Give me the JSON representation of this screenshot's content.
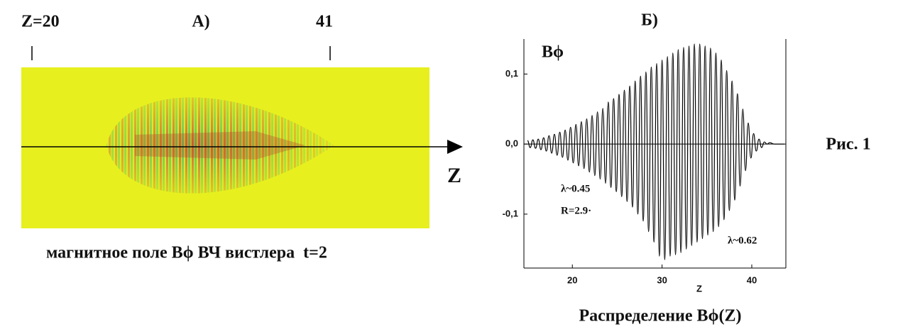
{
  "chart_data": [
    {
      "type": "heatmap",
      "title": "А)",
      "markers": [
        {
          "value": 20,
          "label": "Z=20"
        },
        41
      ],
      "xlabel": "Z",
      "caption": "магнитное поле Bϕ ВЧ вистлера  t=2"
    },
    {
      "type": "line",
      "title": "Б)",
      "subtitle": "Распределение Bϕ(Z)",
      "xlabel": "Z",
      "ylabel": "Bϕ",
      "xlim": [
        14.6,
        43.8
      ],
      "ylim": [
        -0.177,
        0.15
      ],
      "xticks": [
        20,
        30,
        40
      ],
      "yticks": [
        {
          "value": 0.1,
          "label": "0,1"
        },
        {
          "value": 0,
          "label": "0,0"
        },
        {
          "value": -0.1,
          "label": "-0,1"
        }
      ],
      "color": "#000000",
      "annotations": [
        "λ~0.45",
        "R=2.9·",
        "λ~0.62"
      ],
      "x": [
        15.0,
        15.3,
        15.6,
        15.9,
        16.2,
        16.5,
        16.8,
        17.1,
        17.4,
        17.7,
        18.0,
        18.3,
        18.6,
        18.9,
        19.2,
        19.5,
        19.8,
        20.1,
        20.4,
        20.7,
        21.0,
        21.3,
        21.6,
        21.9,
        22.2,
        22.5,
        22.8,
        23.1,
        23.4,
        23.7,
        24.0,
        24.3,
        24.6,
        24.9,
        25.2,
        25.5,
        25.8,
        26.1,
        26.4,
        26.7,
        27.0,
        27.3,
        27.6,
        27.9,
        28.2,
        28.5,
        28.8,
        29.1,
        29.4,
        29.7,
        30.0,
        30.3,
        30.6,
        30.9,
        31.2,
        31.5,
        31.8,
        32.1,
        32.4,
        32.7,
        33.0,
        33.3,
        33.6,
        33.9,
        34.2,
        34.5,
        34.8,
        35.1,
        35.4,
        35.7,
        36.0,
        36.3,
        36.6,
        36.9,
        37.2,
        37.5,
        37.8,
        38.1,
        38.4,
        38.7,
        39.0,
        39.3,
        39.6,
        39.9,
        40.2,
        40.5,
        40.8,
        41.1,
        41.4,
        41.7,
        42.0,
        42.5,
        43.0,
        43.6
      ],
      "values": [
        0.005,
        -0.005,
        0.006,
        -0.006,
        0.007,
        -0.008,
        0.009,
        -0.01,
        0.012,
        -0.013,
        0.014,
        -0.016,
        0.017,
        -0.019,
        0.02,
        -0.023,
        0.024,
        -0.027,
        0.028,
        -0.031,
        0.032,
        -0.035,
        0.036,
        -0.04,
        0.041,
        -0.045,
        0.046,
        -0.05,
        0.051,
        -0.056,
        0.06,
        -0.062,
        0.065,
        -0.068,
        0.071,
        -0.075,
        0.077,
        -0.082,
        0.083,
        -0.09,
        0.09,
        -0.1,
        0.097,
        -0.11,
        0.103,
        -0.125,
        0.11,
        -0.14,
        0.115,
        -0.16,
        0.12,
        -0.165,
        0.125,
        -0.16,
        0.13,
        -0.158,
        0.135,
        -0.155,
        0.138,
        -0.15,
        0.14,
        -0.145,
        0.143,
        -0.14,
        0.143,
        -0.135,
        0.14,
        -0.13,
        0.137,
        -0.125,
        0.13,
        -0.118,
        0.12,
        -0.108,
        0.105,
        -0.095,
        0.09,
        -0.08,
        0.072,
        -0.06,
        0.05,
        -0.038,
        0.03,
        -0.02,
        0.015,
        -0.01,
        0.007,
        -0.005,
        0.003,
        0,
        0.002,
        0,
        0,
        0
      ]
    },
    {
      "type": "label",
      "text": "Рис. 1"
    }
  ]
}
